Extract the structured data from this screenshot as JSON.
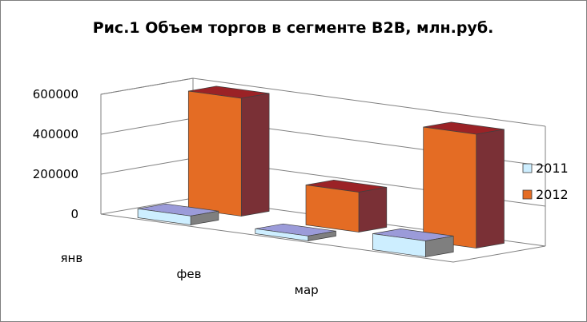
{
  "chart_data": {
    "type": "bar",
    "title": "Рис.1 Объем торгов в сегменте B2B, млн.руб.",
    "categories": [
      "янв",
      "фев",
      "мар"
    ],
    "series": [
      {
        "name": "2011",
        "values": [
          45000,
          25000,
          80000
        ]
      },
      {
        "name": "2012",
        "values": [
          590000,
          200000,
          570000
        ]
      }
    ],
    "ylim": [
      0,
      600000
    ],
    "yticks": [
      "0",
      "200000",
      "400000",
      "600000"
    ],
    "grid": true,
    "legend_position": "right",
    "colors": {
      "s2011_front": "#cdeeff",
      "s2011_top": "#9b9bd9",
      "s2011_side": "#7f7f7f",
      "s2012_front": "#e46c24",
      "s2012_top": "#9b2226",
      "s2012_side": "#7a3036",
      "grid": "#808080"
    }
  }
}
